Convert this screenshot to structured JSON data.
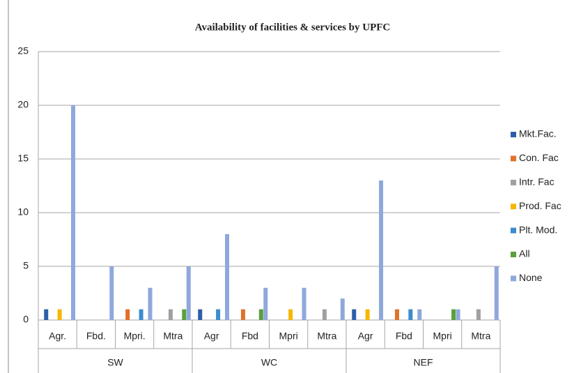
{
  "chart_data": {
    "type": "bar",
    "title": "Availability  of facilities & services by UPFC",
    "categories": [
      "Agr.",
      "Fbd.",
      "Mpri.",
      "Mtra",
      "Agr",
      "Fbd",
      "Mpri",
      "Mtra",
      "Agr",
      "Fbd",
      "Mpri",
      "Mtra"
    ],
    "groups": [
      "SW",
      "WC",
      "NEF"
    ],
    "series": [
      {
        "name": "Mkt.Fac.",
        "color": "#2e5fa6",
        "values": [
          1,
          0,
          0,
          0,
          1,
          0,
          0,
          0,
          1,
          0,
          0,
          0
        ]
      },
      {
        "name": "Con. Fac",
        "color": "#e0712b",
        "values": [
          0,
          0,
          1,
          0,
          0,
          1,
          0,
          0,
          0,
          1,
          0,
          0
        ]
      },
      {
        "name": "Intr. Fac",
        "color": "#a0a0a0",
        "values": [
          0,
          0,
          0,
          1,
          0,
          0,
          0,
          1,
          0,
          0,
          0,
          1
        ]
      },
      {
        "name": "Prod. Fac",
        "color": "#f5b800",
        "values": [
          1,
          0,
          0,
          0,
          0,
          0,
          1,
          0,
          1,
          0,
          0,
          0
        ]
      },
      {
        "name": "Plt. Mod.",
        "color": "#3b8ccf",
        "values": [
          0,
          0,
          1,
          0,
          1,
          0,
          0,
          0,
          0,
          1,
          0,
          0
        ]
      },
      {
        "name": "All",
        "color": "#5aa03c",
        "values": [
          0,
          0,
          0,
          1,
          0,
          1,
          0,
          0,
          0,
          0,
          1,
          0
        ]
      },
      {
        "name": "None",
        "color": "#8fa8dc",
        "values": [
          20,
          5,
          3,
          5,
          8,
          3,
          3,
          2,
          13,
          1,
          1,
          5
        ]
      }
    ],
    "ylim": [
      0,
      25
    ],
    "yticks": [
      0,
      5,
      10,
      15,
      20,
      25
    ],
    "grid": true,
    "legend": "right"
  }
}
